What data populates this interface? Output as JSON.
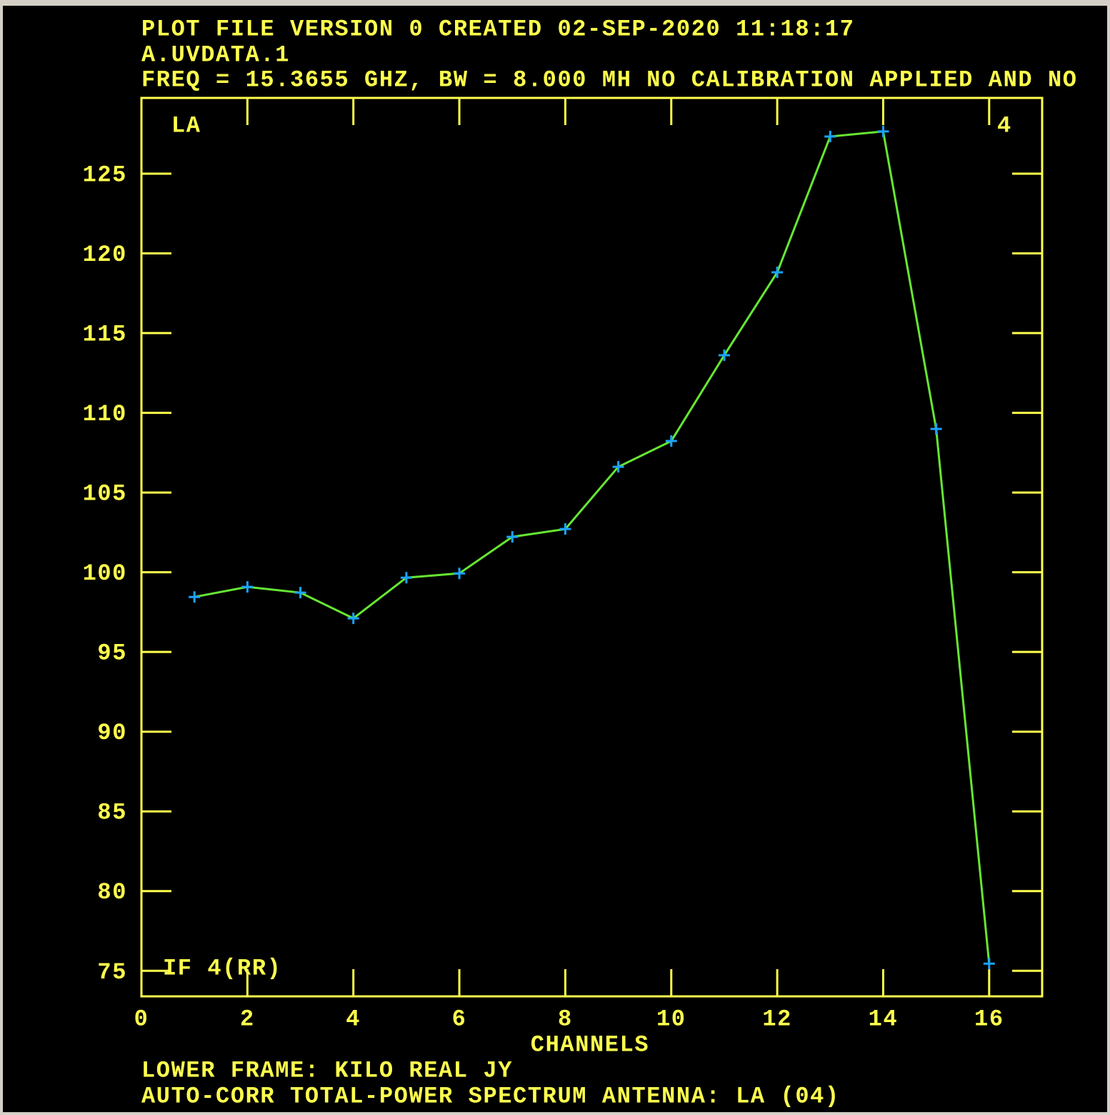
{
  "chart_data": {
    "type": "line",
    "header": [
      "PLOT FILE VERSION 0  CREATED 02-SEP-2020 11:18:17",
      "A.UVDATA.1",
      "FREQ = 15.3655 GHZ, BW = 8.000 MH   NO CALIBRATION APPLIED AND NO"
    ],
    "footer": [
      "LOWER FRAME: KILO REAL JY",
      "AUTO-CORR TOTAL-POWER SPECTRUM    ANTENNA: LA (04)"
    ],
    "xlabel": "CHANNELS",
    "annotations": [
      "LA",
      "4",
      "IF 4(RR)"
    ],
    "x": [
      1,
      2,
      3,
      4,
      5,
      6,
      7,
      8,
      9,
      10,
      11,
      12,
      13,
      14,
      15,
      16
    ],
    "values": [
      98.45,
      99.08,
      98.72,
      97.11,
      99.66,
      99.93,
      102.22,
      102.71,
      106.61,
      108.23,
      113.61,
      118.81,
      127.33,
      127.65,
      108.99,
      75.45
    ],
    "color": "#66e633",
    "marker_color": "#1aa3ff",
    "frame_color": "#ffff4d",
    "xlim": [
      0,
      17
    ],
    "xticks": [
      0,
      2,
      4,
      6,
      8,
      10,
      12,
      14,
      16
    ],
    "ylim": [
      73.4,
      129.75
    ],
    "yticks": [
      75,
      80,
      85,
      90,
      95,
      100,
      105,
      110,
      115,
      120,
      125
    ]
  }
}
